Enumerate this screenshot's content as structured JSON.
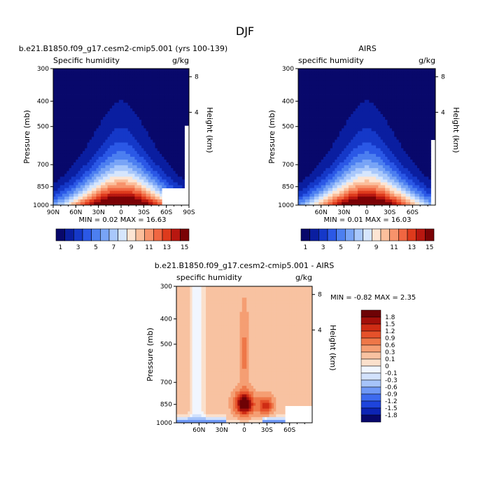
{
  "figure_title": "DJF",
  "panel_model": {
    "title": "b.e21.B1850.f09_g17.cesm2-cmip5.001 (yrs 100-139)",
    "left_label": "Specific humidity",
    "right_label": "g/kg",
    "stats": "MIN =   0.02  MAX =  16.63"
  },
  "panel_obs": {
    "title": "AIRS",
    "left_label": "specific humidity",
    "right_label": "g/kg",
    "stats": "MIN =   0.01  MAX =  16.03"
  },
  "panel_diff": {
    "title": "b.e21.B1850.f09_g17.cesm2-cmip5.001 - AIRS",
    "left_label": "specific humidity",
    "right_label": "g/kg",
    "stats": "MIN =  -0.82  MAX =   2.35"
  },
  "axis": {
    "ylabel": "Pressure (mb)",
    "ylabel_right": "Height (km)"
  },
  "colors": {
    "q_scale": [
      "#08086b",
      "#0a1ea0",
      "#1538c8",
      "#2b58e6",
      "#4c7ff0",
      "#78a4f6",
      "#a9c8fb",
      "#d6e6fd",
      "#fde5d3",
      "#fbbf9c",
      "#f7936b",
      "#f06641",
      "#de3a1c",
      "#b81710",
      "#7a0306"
    ],
    "diff_scale": [
      "#08086b",
      "#0d24b4",
      "#1e44dc",
      "#3d6aef",
      "#6f98f6",
      "#a6c4fa",
      "#d2e2fd",
      "#f1f6ff",
      "#fbe0cc",
      "#f8c2a1",
      "#f59e73",
      "#ee7748",
      "#e5512a",
      "#cf2c14",
      "#a30f0a",
      "#6e0205"
    ]
  },
  "chart_data": [
    {
      "type": "contour",
      "title": "b.e21.B1850.f09_g17.cesm2-cmip5.001 (yrs 100-139)",
      "ylabel": "Pressure (mb)",
      "ylabel_right": "Height (km)",
      "x_ticks": [
        "90N",
        "60N",
        "30N",
        "0",
        "30S",
        "60S",
        "90S"
      ],
      "y_ticks": [
        "300",
        "400",
        "500",
        "700",
        "850",
        "1000"
      ],
      "y_right_ticks": [
        "8",
        "4"
      ],
      "colorbar_labels": [
        "1",
        "3",
        "5",
        "7",
        "9",
        "11",
        "13",
        "15"
      ],
      "units": "g/kg",
      "min": 0.02,
      "max": 16.63,
      "peak_x": 0,
      "peak_p": 1000
    },
    {
      "type": "contour",
      "title": "AIRS",
      "ylabel": "Pressure (mb)",
      "ylabel_right": "Height (km)",
      "x_ticks": [
        "60N",
        "30N",
        "0",
        "30S",
        "60S"
      ],
      "y_ticks": [
        "300",
        "400",
        "500",
        "700",
        "850",
        "1000"
      ],
      "y_right_ticks": [
        "8",
        "4"
      ],
      "colorbar_labels": [
        "1",
        "3",
        "5",
        "7",
        "9",
        "11",
        "13",
        "15"
      ],
      "units": "g/kg",
      "min": 0.01,
      "max": 16.03,
      "peak_x": 0,
      "peak_p": 1000
    },
    {
      "type": "contour",
      "title": "b.e21.B1850.f09_g17.cesm2-cmip5.001 - AIRS",
      "ylabel": "Pressure (mb)",
      "ylabel_right": "Height (km)",
      "x_ticks": [
        "60N",
        "30N",
        "0",
        "30S",
        "60S"
      ],
      "y_ticks": [
        "300",
        "400",
        "500",
        "700",
        "850",
        "1000"
      ],
      "y_right_ticks": [
        "8",
        "4"
      ],
      "colorbar_labels": [
        "1.8",
        "1.5",
        "1.2",
        "0.9",
        "0.6",
        "0.3",
        "0.1",
        "0",
        "-0.1",
        "-0.3",
        "-0.6",
        "-0.9",
        "-1.2",
        "-1.5",
        "-1.8"
      ],
      "units": "g/kg",
      "min": -0.82,
      "max": 2.35
    }
  ]
}
